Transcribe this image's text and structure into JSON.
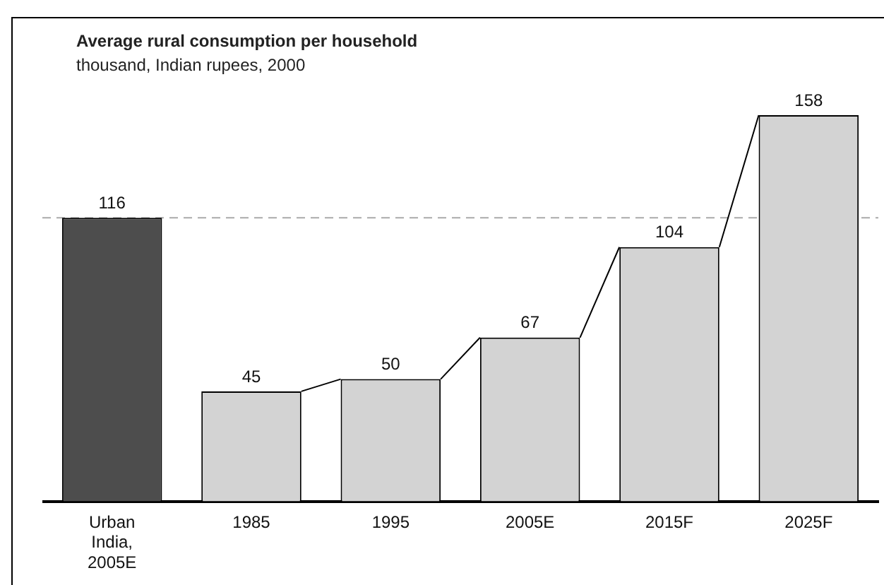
{
  "chart_data": {
    "type": "bar",
    "title": "Average rural consumption per household",
    "subtitle": "thousand, Indian rupees, 2000",
    "categories": [
      "Urban India, 2005E",
      "1985",
      "1995",
      "2005E",
      "2015F",
      "2025F"
    ],
    "values": [
      116,
      45,
      50,
      67,
      104,
      158
    ],
    "colors": [
      "#4d4d4d",
      "#d3d3d3",
      "#d3d3d3",
      "#d3d3d3",
      "#d3d3d3",
      "#d3d3d3"
    ],
    "data_labels": true,
    "grid": false,
    "legend": false,
    "ref_lines": [
      {
        "axis": "y",
        "value": 116,
        "color": "#aaaaaa",
        "line_style": "dashed"
      }
    ]
  }
}
